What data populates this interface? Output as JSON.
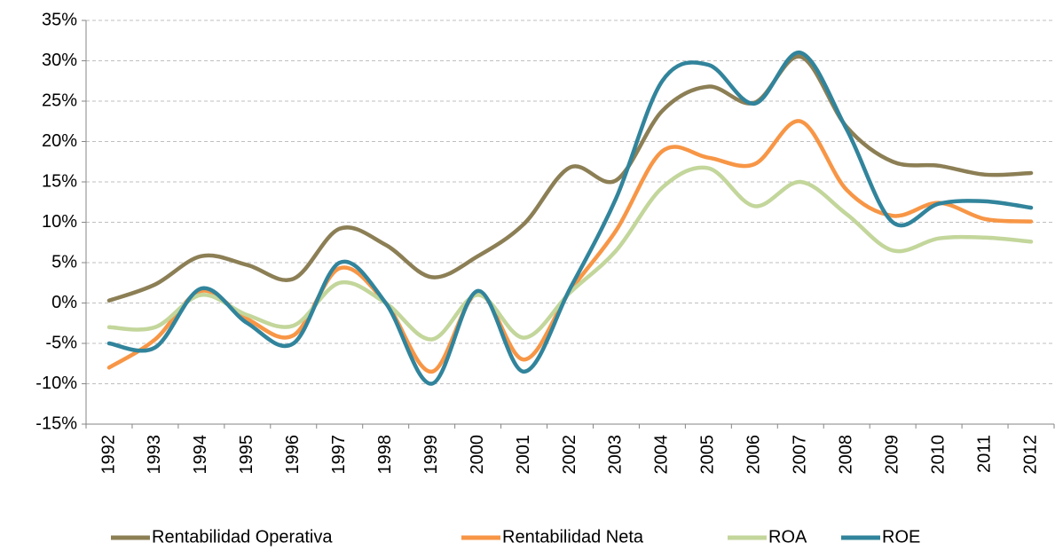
{
  "chart_data": {
    "type": "line",
    "categories": [
      "1992",
      "1993",
      "1994",
      "1995",
      "1996",
      "1997",
      "1998",
      "1999",
      "2000",
      "2001",
      "2002",
      "2003",
      "2004",
      "2005",
      "2006",
      "2007",
      "2008",
      "2009",
      "2010",
      "2011",
      "2012"
    ],
    "series": [
      {
        "name": "Rentabilidad Operativa",
        "color": "#8c7f55",
        "values": [
          0.3,
          2.3,
          5.8,
          4.7,
          3,
          9.2,
          7.2,
          3.2,
          5.8,
          9.8,
          16.8,
          15.2,
          23.8,
          26.8,
          24.8,
          30.5,
          21.8,
          17.5,
          17,
          15.9,
          16.1
        ]
      },
      {
        "name": "Rentabilidad Neta",
        "color": "#f79646",
        "values": [
          -8,
          -4.5,
          1.5,
          -2,
          -4,
          4.3,
          0,
          -8.5,
          1.2,
          -7,
          1.5,
          9,
          18.8,
          18,
          17.2,
          22.5,
          14,
          10.8,
          12.4,
          10.4,
          10.1
        ]
      },
      {
        "name": "ROA",
        "color": "#c3d69b",
        "values": [
          -3,
          -3,
          1,
          -1.5,
          -2.8,
          2.5,
          0,
          -4.5,
          1,
          -4.3,
          1.3,
          6.5,
          14.3,
          16.7,
          12,
          15,
          11,
          6.5,
          8,
          8.1,
          7.6
        ]
      },
      {
        "name": "ROE",
        "color": "#31849b",
        "values": [
          -5,
          -5.5,
          1.8,
          -2.5,
          -5,
          5,
          0,
          -10,
          1.5,
          -8.5,
          1.8,
          13,
          27.5,
          29.5,
          24.7,
          31,
          21.5,
          10,
          12.3,
          12.6,
          11.8
        ]
      }
    ],
    "ylim": [
      -15,
      35
    ],
    "yticks": [
      {
        "value": -15,
        "label": "-15%"
      },
      {
        "value": -10,
        "label": "-10%"
      },
      {
        "value": -5,
        "label": "-5%"
      },
      {
        "value": 0,
        "label": "0%"
      },
      {
        "value": 5,
        "label": "5%"
      },
      {
        "value": 10,
        "label": "10%"
      },
      {
        "value": 15,
        "label": "15%"
      },
      {
        "value": 20,
        "label": "20%"
      },
      {
        "value": 25,
        "label": "25%"
      },
      {
        "value": 30,
        "label": "30%"
      },
      {
        "value": 35,
        "label": "35%"
      }
    ],
    "grid": true,
    "smooth": true,
    "legend": "bottom"
  }
}
